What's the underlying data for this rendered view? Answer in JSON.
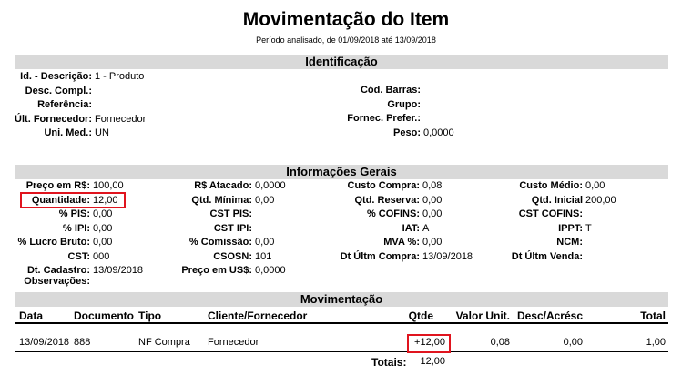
{
  "header": {
    "title": "Movimentação do Item",
    "subtitle": "Período analisado, de 01/09/2018 até 13/09/2018"
  },
  "identificacao": {
    "title": "Identificação",
    "left": [
      {
        "label": "Id. - Descrição:",
        "value": "1 - Produto"
      },
      {
        "label": "Desc. Compl.:",
        "value": ""
      },
      {
        "label": "Referência:",
        "value": ""
      },
      {
        "label": "Últ. Fornecedor:",
        "value": "Fornecedor"
      },
      {
        "label": "Uni. Med.:",
        "value": "UN"
      }
    ],
    "right": [
      {
        "label": "Cód. Barras:",
        "value": ""
      },
      {
        "label": "Grupo:",
        "value": ""
      },
      {
        "label": "Fornec. Prefer.:",
        "value": ""
      },
      {
        "label": "Peso:",
        "value": "0,0000"
      }
    ]
  },
  "gerais": {
    "title": "Informações Gerais",
    "col1": [
      {
        "label": "Preço em R$:",
        "value": "100,00"
      },
      {
        "label": "Quantidade:",
        "value": "12,00"
      },
      {
        "label": "% PIS:",
        "value": "0,00"
      },
      {
        "label": "% IPI:",
        "value": "0,00"
      },
      {
        "label": "% Lucro Bruto:",
        "value": "0,00"
      },
      {
        "label": "CST:",
        "value": "000"
      },
      {
        "label": "Dt. Cadastro:",
        "value": "13/09/2018"
      },
      {
        "label": "Observações:",
        "value": ""
      }
    ],
    "col2": [
      {
        "label": "R$ Atacado:",
        "value": "0,0000"
      },
      {
        "label": "Qtd. Mínima:",
        "value": "0,00"
      },
      {
        "label": "CST PIS:",
        "value": ""
      },
      {
        "label": "CST IPI:",
        "value": ""
      },
      {
        "label": "% Comissão:",
        "value": "0,00"
      },
      {
        "label": "CSOSN:",
        "value": "101"
      },
      {
        "label": "Preço em US$:",
        "value": "0,0000"
      }
    ],
    "col3": [
      {
        "label": "Custo Compra:",
        "value": "0,08"
      },
      {
        "label": "Qtd. Reserva:",
        "value": "0,00"
      },
      {
        "label": "% COFINS:",
        "value": "0,00"
      },
      {
        "label": "IAT:",
        "value": "A"
      },
      {
        "label": "MVA %:",
        "value": "0,00"
      },
      {
        "label": "Dt Últm Compra:",
        "value": "13/09/2018"
      }
    ],
    "col4": [
      {
        "label": "Custo Médio:",
        "value": "0,00"
      },
      {
        "label": "Qtd. Inicial",
        "value": "200,00"
      },
      {
        "label": "CST COFINS:",
        "value": ""
      },
      {
        "label": "IPPT:",
        "value": "T"
      },
      {
        "label": "NCM:",
        "value": ""
      },
      {
        "label": "Dt Últm Venda:",
        "value": ""
      }
    ]
  },
  "movimentacao": {
    "title": "Movimentação",
    "columns": [
      "Data",
      "Documento",
      "Tipo",
      "Cliente/Fornecedor",
      "Qtde",
      "Valor Unit.",
      "Desc/Acrésc",
      "Total"
    ],
    "rows": [
      [
        "13/09/2018",
        "888",
        "NF Compra",
        "Fornecedor",
        "+12,00",
        "0,08",
        "0,00",
        "1,00"
      ]
    ],
    "totais_label": "Totais:",
    "totais_value": "12,00"
  },
  "highlight_color": "#e0141e"
}
